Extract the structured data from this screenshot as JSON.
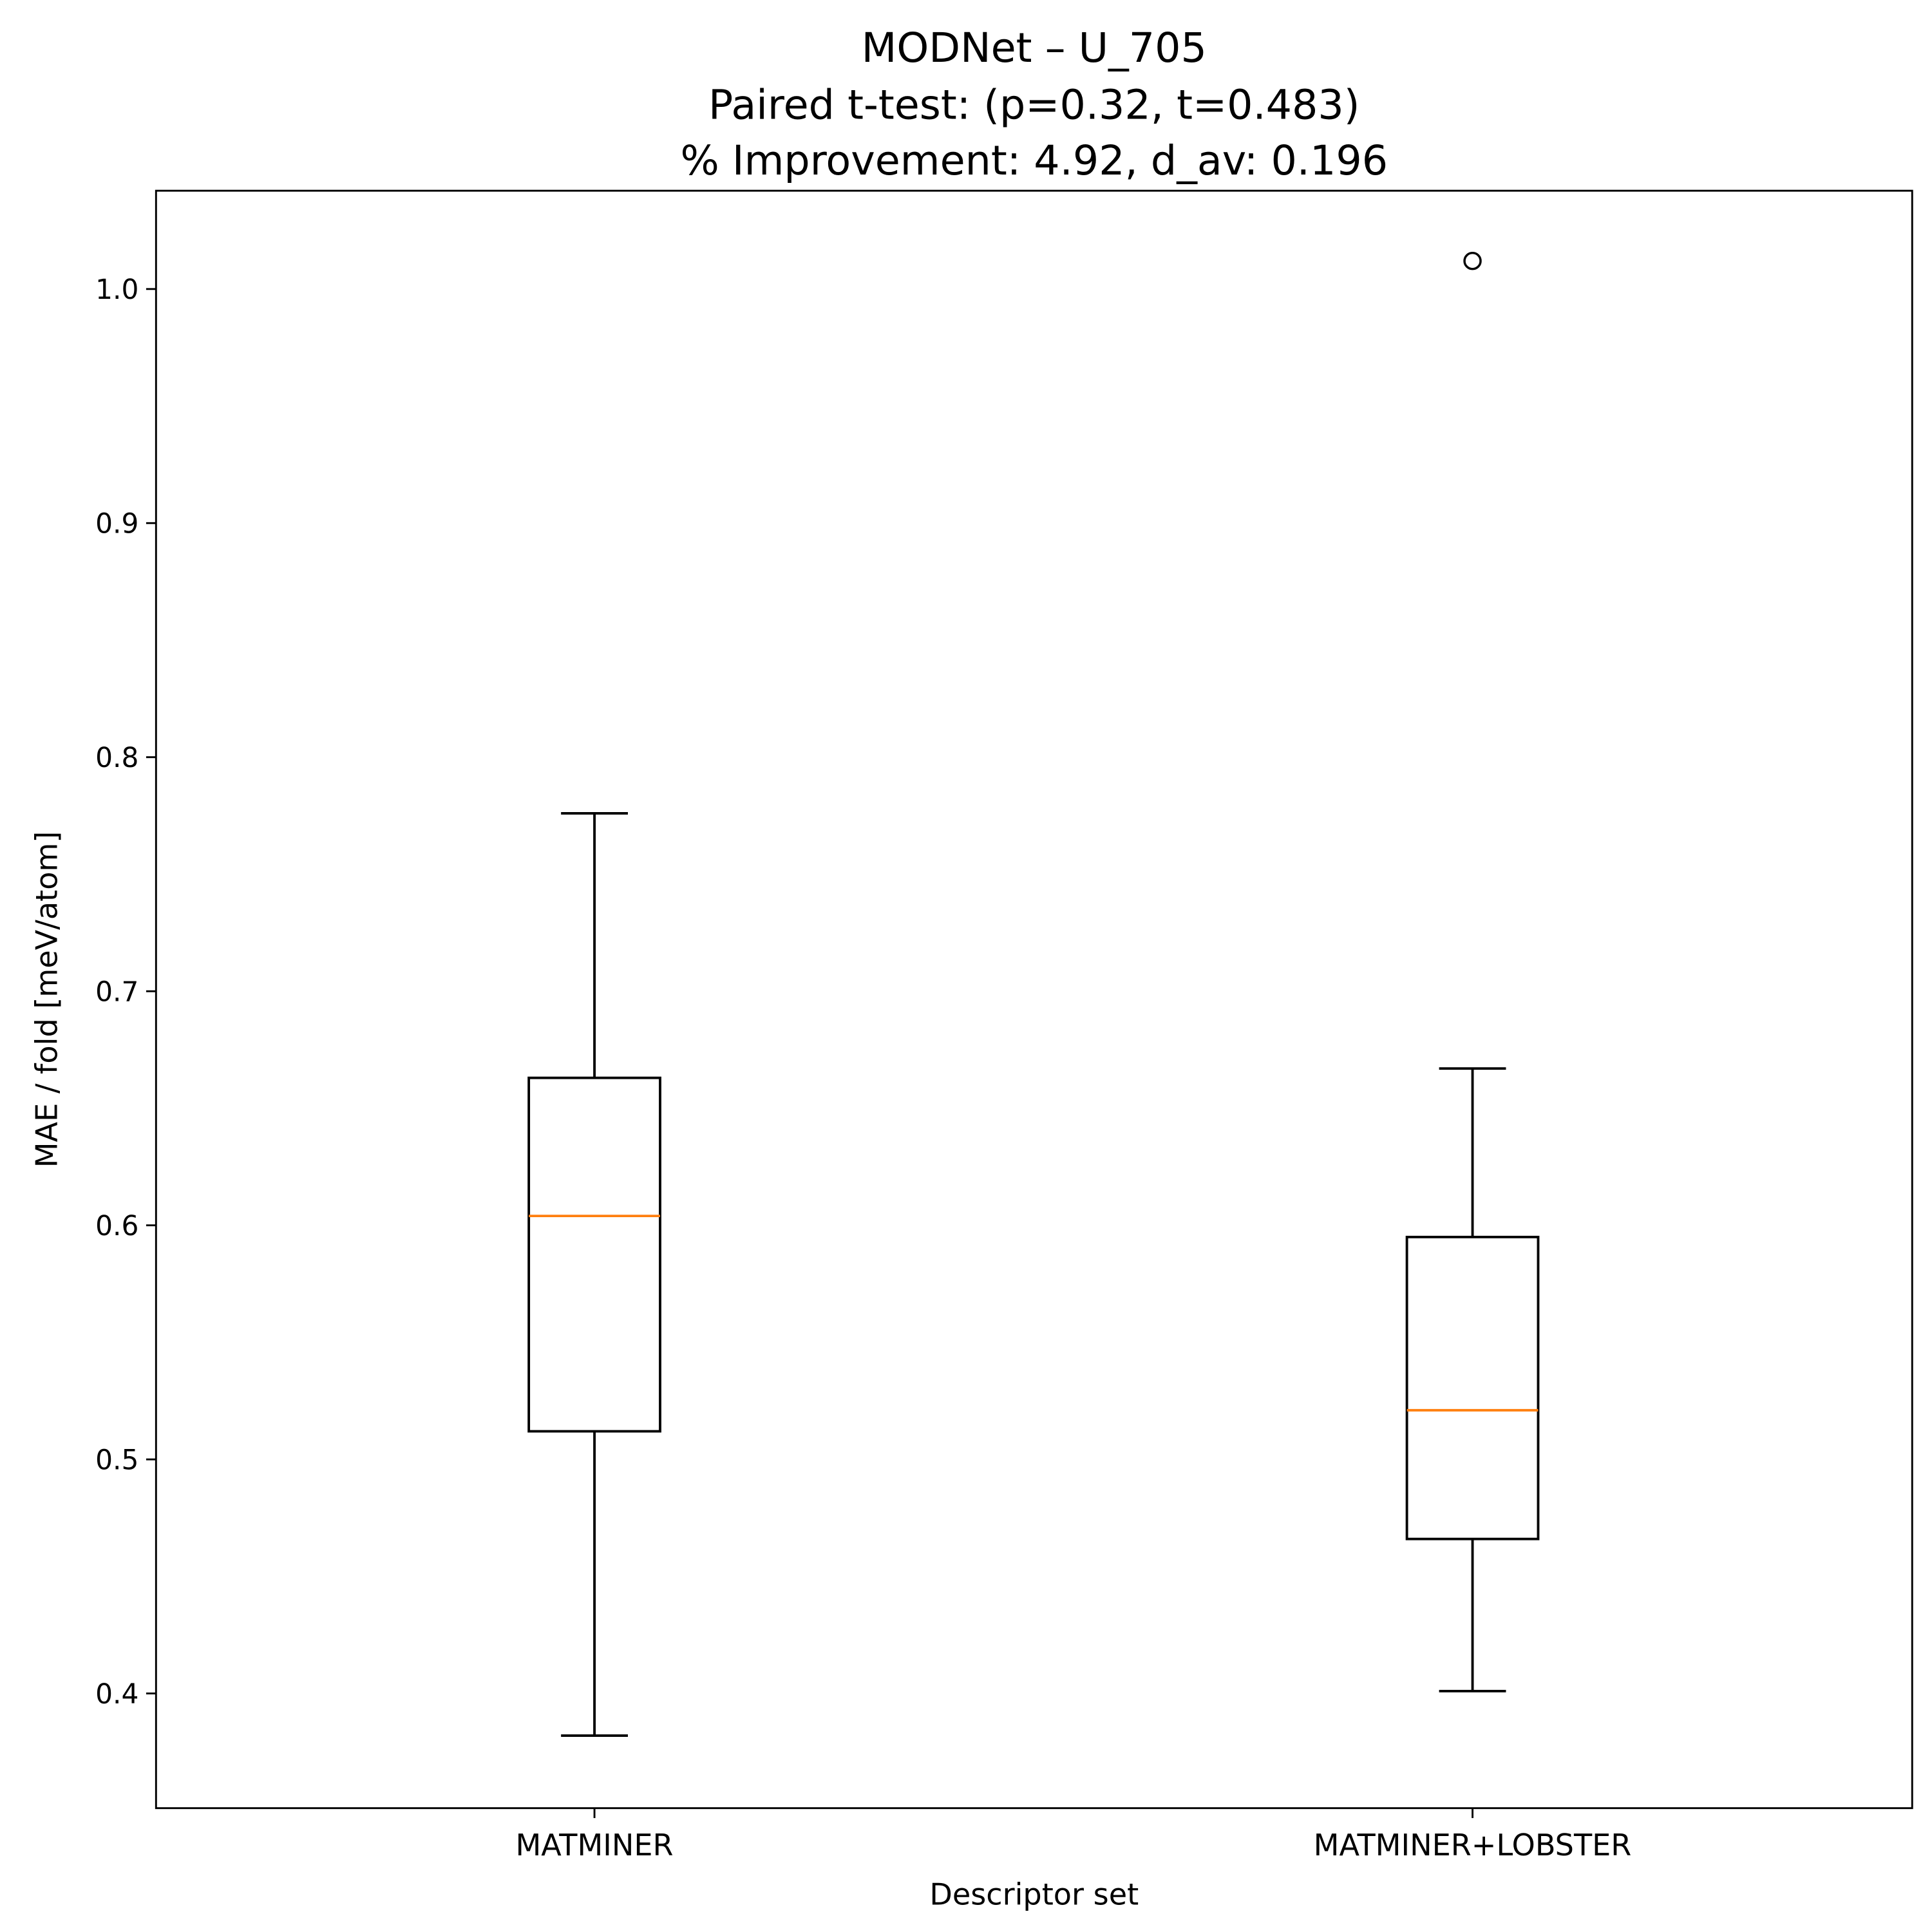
{
  "chart_data": {
    "type": "box",
    "title_lines": [
      "MODNet – U_705",
      "Paired t-test: (p=0.32, t=0.483)",
      "% Improvement: 4.92, d_av: 0.196"
    ],
    "xlabel": "Descriptor set",
    "ylabel": "MAE / fold [meV/atom]",
    "ylim": [
      0.351,
      1.042
    ],
    "yticks": [
      0.4,
      0.5,
      0.6,
      0.7,
      0.8,
      0.9,
      1.0
    ],
    "ytick_labels": [
      "0.4",
      "0.5",
      "0.6",
      "0.7",
      "0.8",
      "0.9",
      "1.0"
    ],
    "categories": [
      "MATMINER",
      "MATMINER+LOBSTER"
    ],
    "boxes": [
      {
        "whisker_low": 0.382,
        "q1": 0.512,
        "median": 0.604,
        "q3": 0.663,
        "whisker_high": 0.776,
        "outliers": []
      },
      {
        "whisker_low": 0.401,
        "q1": 0.466,
        "median": 0.521,
        "q3": 0.595,
        "whisker_high": 0.667,
        "outliers": [
          1.012
        ]
      }
    ],
    "grid": false,
    "colors": {
      "box": "#000000",
      "median": "#ff7f0e"
    }
  }
}
